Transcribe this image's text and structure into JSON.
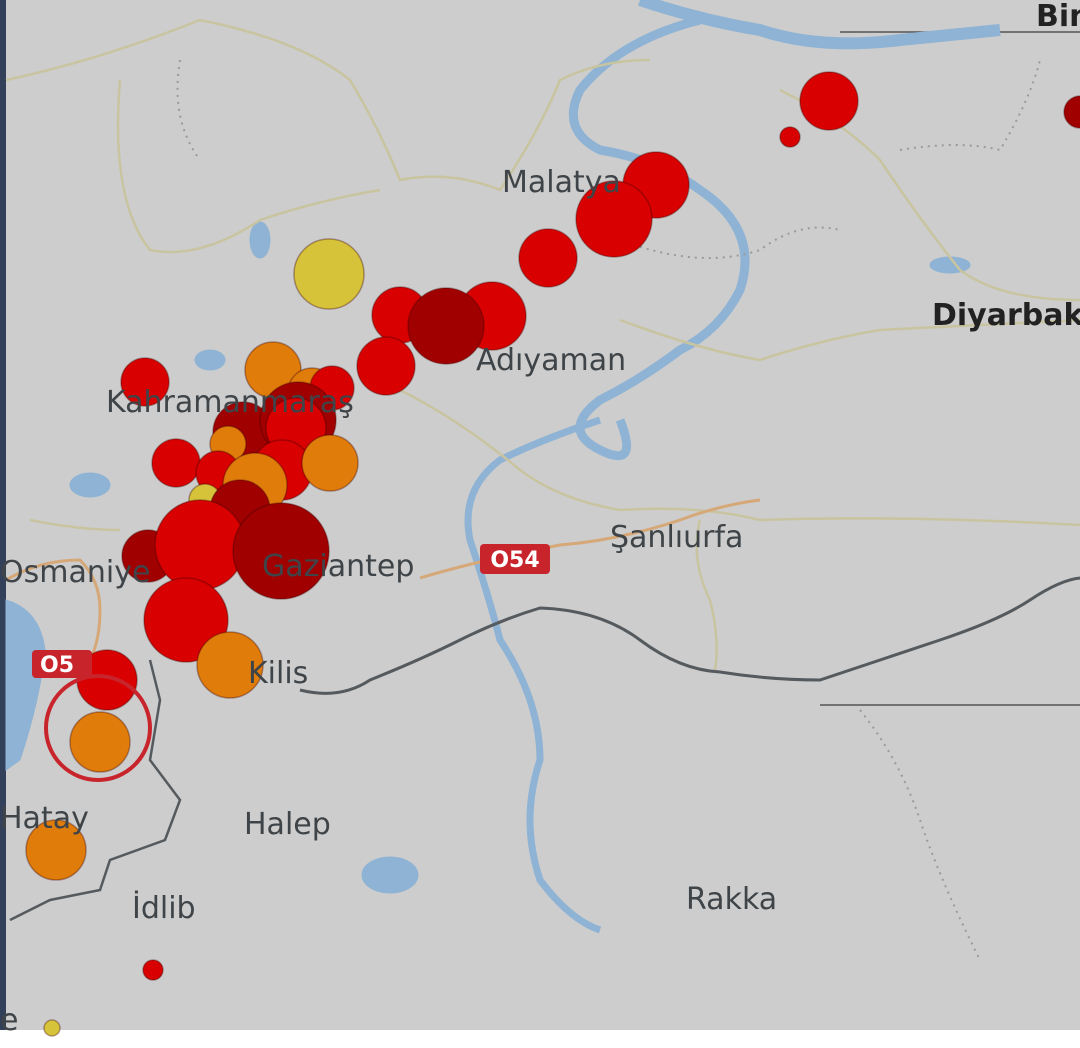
{
  "map": {
    "background_color": "#cdcdcd",
    "water_color": "#8fb3d4",
    "border_color": "#555a5e",
    "road_color": "#d6a878",
    "province_border_color": "#c9c4a0"
  },
  "place_labels": [
    {
      "id": "malatya",
      "text": "Malatya"
    },
    {
      "id": "adiyaman",
      "text": "Adıyaman"
    },
    {
      "id": "kahramanmaras",
      "text": "Kahramanmaraş"
    },
    {
      "id": "diyarbakir",
      "text": "Diyarbak"
    },
    {
      "id": "bingol",
      "text": "Bin"
    },
    {
      "id": "sanliurfa",
      "text": "Şanlıurfa"
    },
    {
      "id": "gaziantep",
      "text": "Gaziantep"
    },
    {
      "id": "osmaniye",
      "text": "Osmaniye"
    },
    {
      "id": "kilis",
      "text": "Kilis"
    },
    {
      "id": "hatay",
      "text": "Hatay"
    },
    {
      "id": "halep",
      "text": "Halep"
    },
    {
      "id": "idlib",
      "text": "İdlib"
    },
    {
      "id": "rakka",
      "text": "Rakka"
    },
    {
      "id": "edge",
      "text": "e"
    }
  ],
  "road_shields": [
    {
      "id": "o54",
      "text": "O54"
    },
    {
      "id": "o5x",
      "text": "O5"
    }
  ],
  "marker_colors": {
    "strongest": "#a00000",
    "strong": "#d80000",
    "moderate": "#e07c0a",
    "light": "#d6c33a"
  },
  "highlight_ring_color": "#c8242b"
}
